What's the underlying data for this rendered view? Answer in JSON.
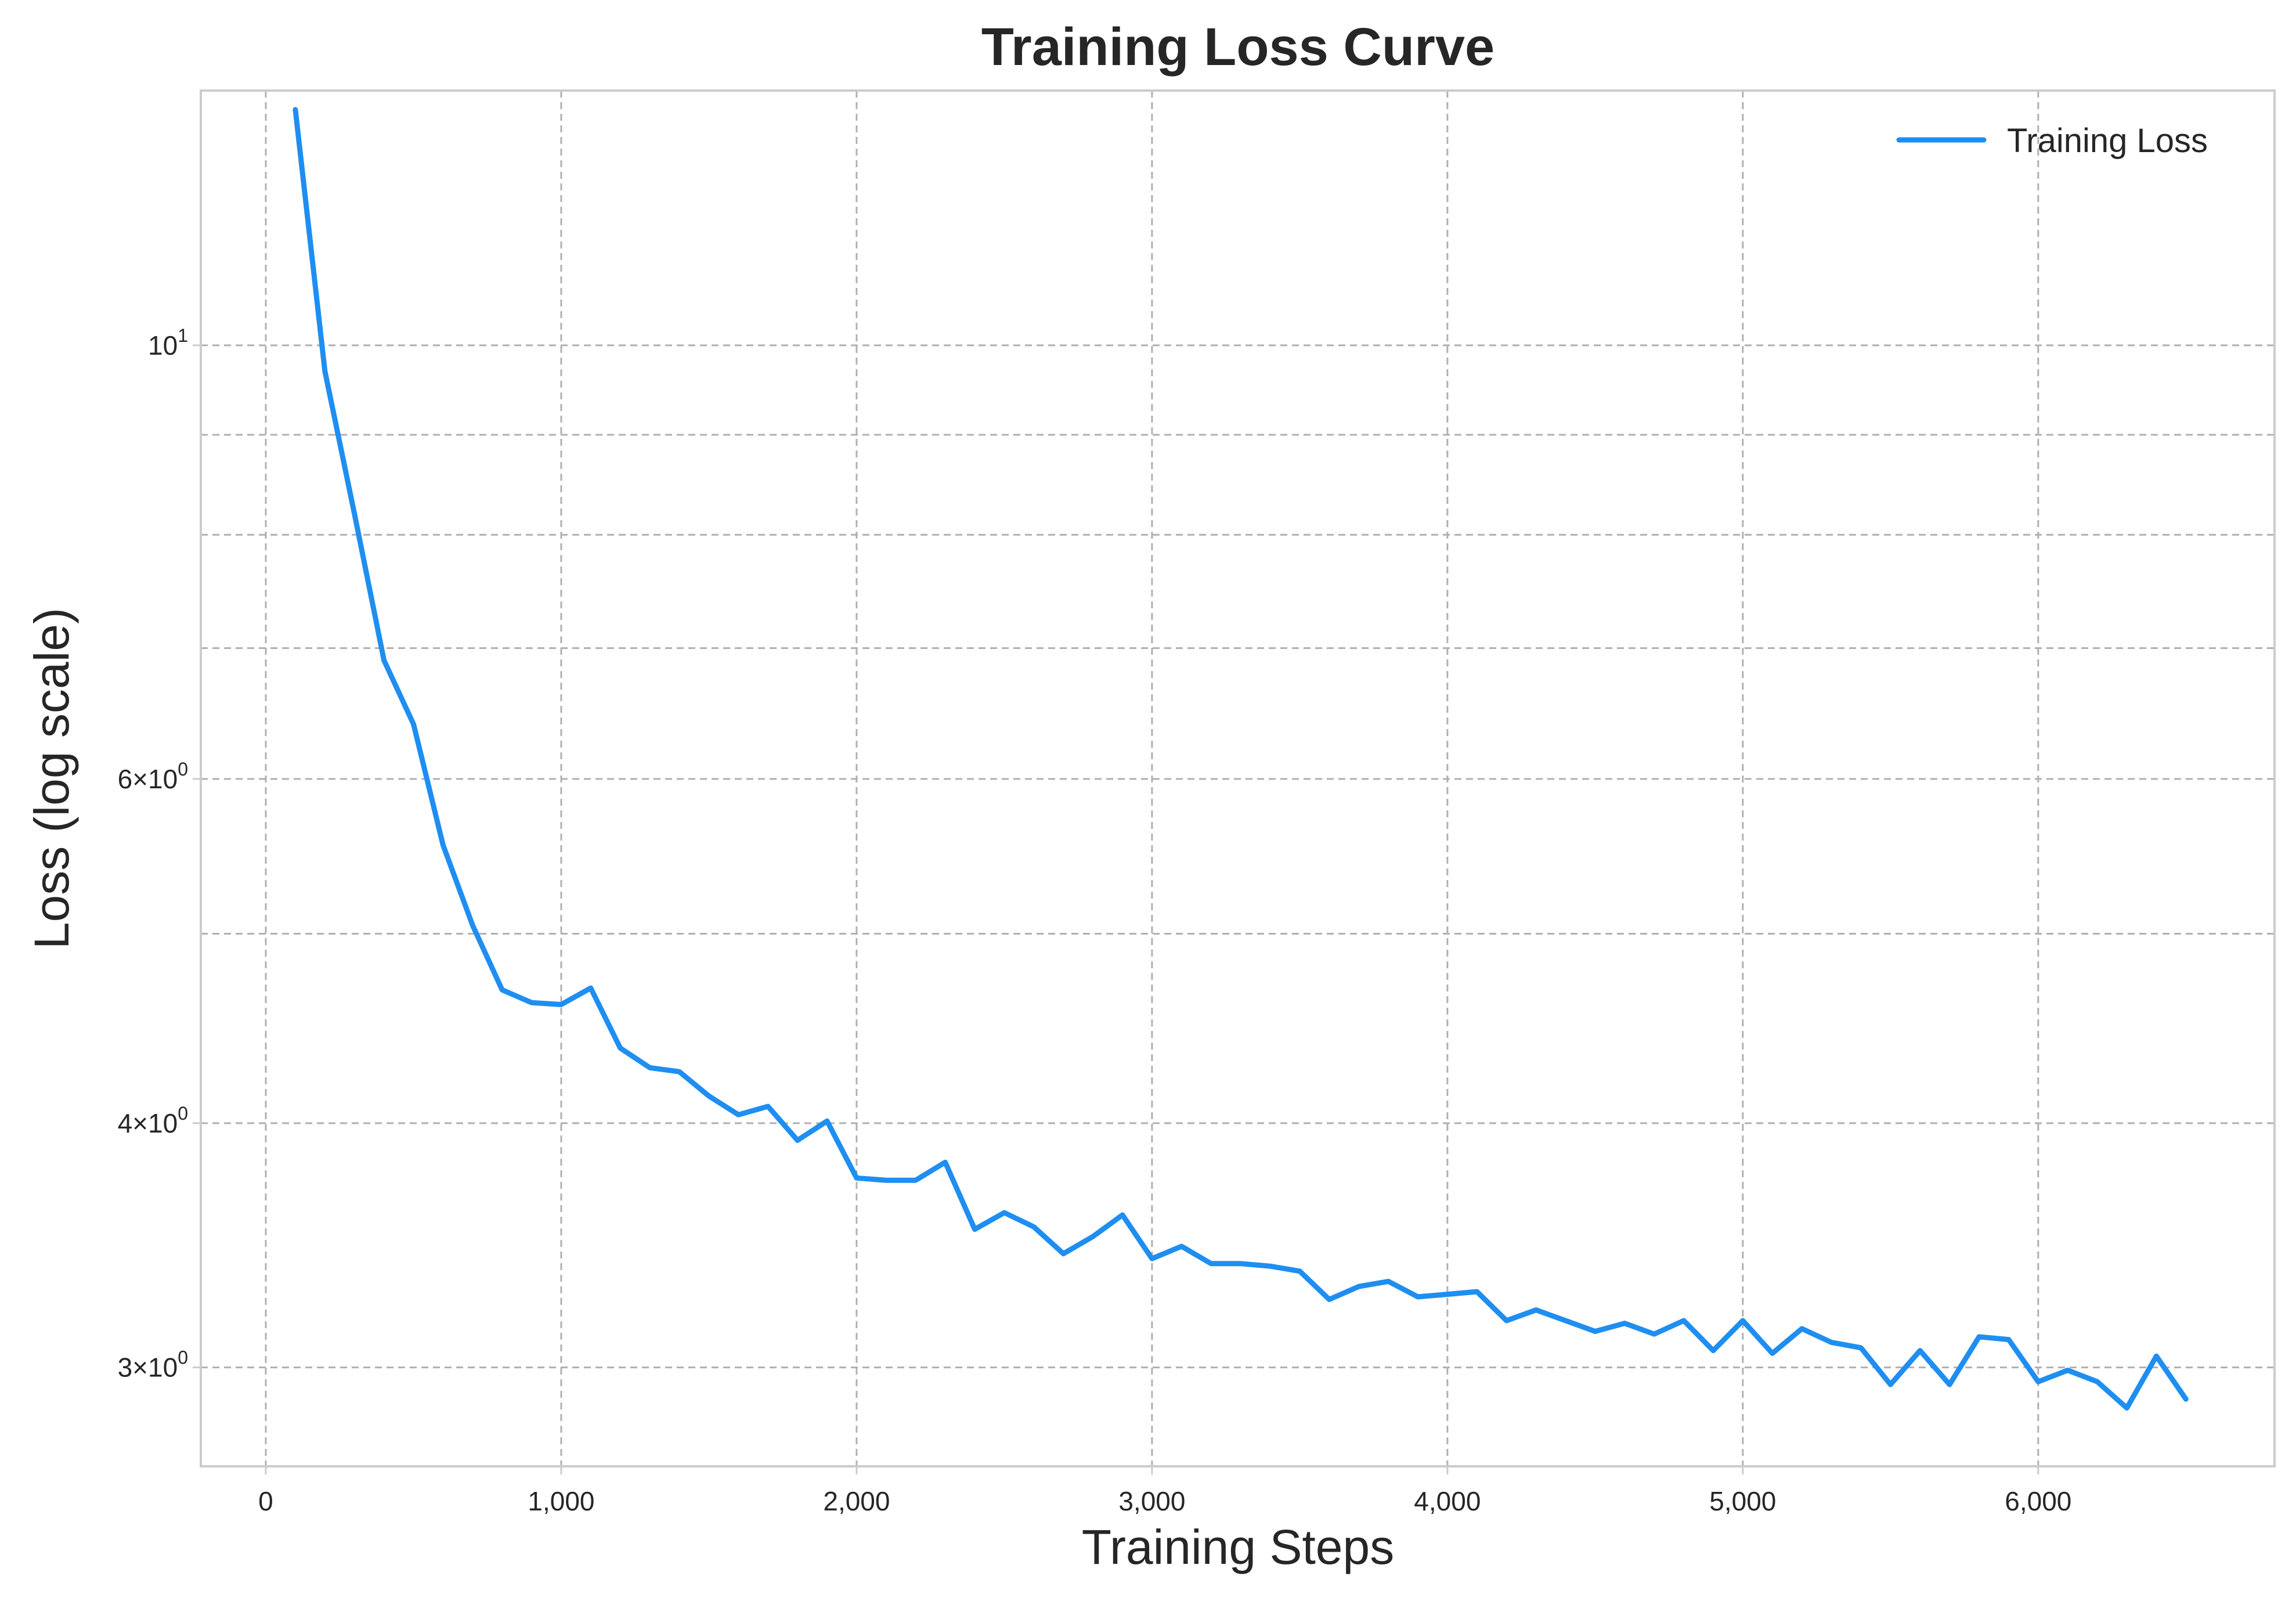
{
  "chart_data": {
    "type": "line",
    "title": "Training Loss Curve",
    "xlabel": "Training Steps",
    "ylabel": "Loss (log scale)",
    "yscale": "log",
    "xlim": [
      -220,
      6800
    ],
    "ylim": [
      2.67,
      13.5
    ],
    "grid": true,
    "legend_position": "top-right",
    "line_color": "#1f8ef1",
    "x_ticks": [
      {
        "value": 0,
        "label": "0"
      },
      {
        "value": 1000,
        "label": "1,000"
      },
      {
        "value": 2000,
        "label": "2,000"
      },
      {
        "value": 3000,
        "label": "3,000"
      },
      {
        "value": 4000,
        "label": "4,000"
      },
      {
        "value": 5000,
        "label": "5,000"
      },
      {
        "value": 6000,
        "label": "6,000"
      }
    ],
    "y_major_ticks": [
      {
        "value": 10,
        "base": "10",
        "exp": "1"
      },
      {
        "value": 6,
        "base": "6×10",
        "exp": "0"
      },
      {
        "value": 4,
        "base": "4×10",
        "exp": "0"
      },
      {
        "value": 3,
        "base": "3×10",
        "exp": "0"
      }
    ],
    "y_minor_grid": [
      9,
      8,
      7,
      5
    ],
    "series": [
      {
        "name": "Training Loss",
        "x": [
          100,
          200,
          300,
          400,
          500,
          600,
          700,
          800,
          900,
          1000,
          1100,
          1200,
          1300,
          1400,
          1500,
          1600,
          1700,
          1800,
          1900,
          2000,
          2100,
          2200,
          2300,
          2400,
          2500,
          2600,
          2700,
          2800,
          2900,
          3000,
          3100,
          3200,
          3300,
          3400,
          3500,
          3600,
          3700,
          3800,
          3900,
          4000,
          4100,
          4200,
          4300,
          4400,
          4500,
          4600,
          4700,
          4800,
          4900,
          5000,
          5100,
          5200,
          5300,
          5400,
          5500,
          5600,
          5700,
          5800,
          5900,
          6000,
          6100,
          6200,
          6300,
          6400,
          6500
        ],
        "y": [
          13.2,
          9.7,
          8.2,
          6.9,
          6.4,
          5.55,
          5.05,
          4.68,
          4.61,
          4.6,
          4.69,
          4.37,
          4.27,
          4.25,
          4.13,
          4.04,
          4.08,
          3.92,
          4.01,
          3.75,
          3.74,
          3.74,
          3.82,
          3.53,
          3.6,
          3.54,
          3.43,
          3.5,
          3.59,
          3.41,
          3.46,
          3.39,
          3.39,
          3.38,
          3.36,
          3.25,
          3.3,
          3.32,
          3.26,
          3.27,
          3.28,
          3.17,
          3.21,
          3.17,
          3.13,
          3.16,
          3.12,
          3.17,
          3.06,
          3.17,
          3.05,
          3.14,
          3.09,
          3.07,
          2.94,
          3.06,
          2.94,
          3.11,
          3.1,
          2.95,
          2.99,
          2.95,
          2.86,
          3.04,
          2.89
        ]
      }
    ]
  }
}
